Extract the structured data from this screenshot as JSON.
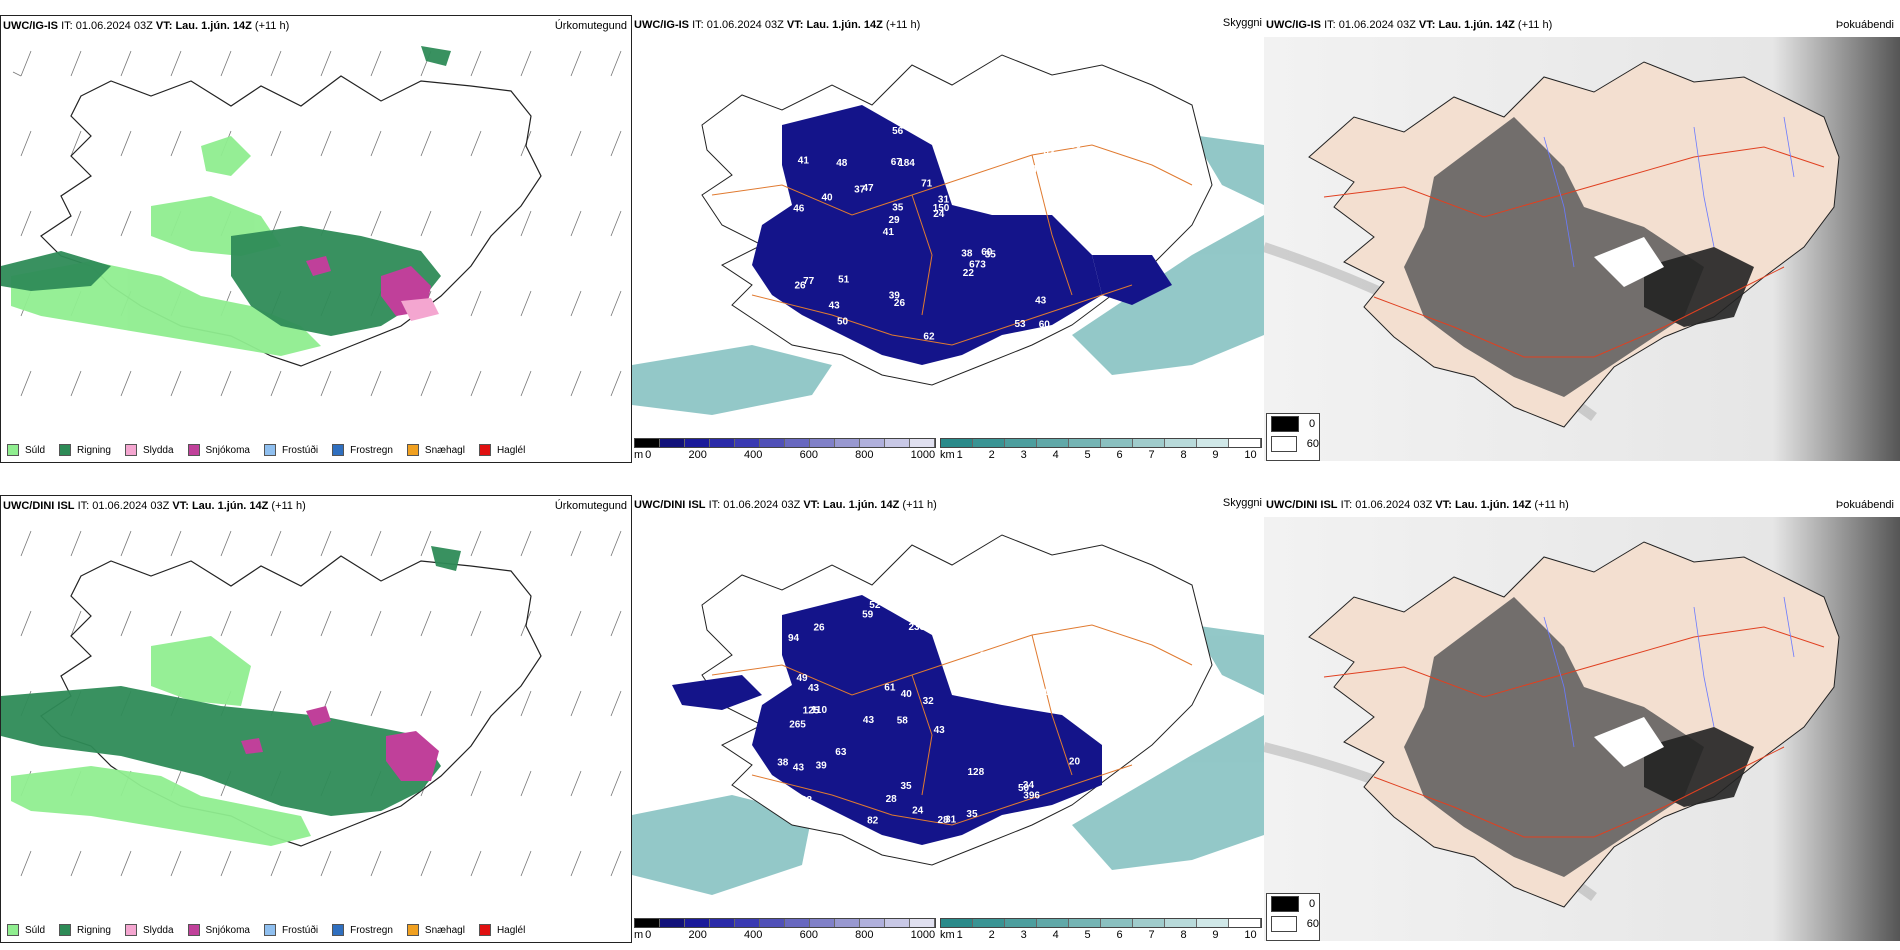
{
  "rows": [
    {
      "model": "UWC/IG-IS",
      "it_label": "IT:",
      "it_value": "01.06.2024 03Z",
      "vt_label": "VT:",
      "vt_value": "Lau. 1.jún. 14Z",
      "lead": "(+11 h)"
    },
    {
      "model": "UWC/DINI ISL",
      "it_label": "IT:",
      "it_value": "01.06.2024 03Z",
      "vt_label": "VT:",
      "vt_value": "Lau. 1.jún. 14Z",
      "lead": "(+11 h)"
    }
  ],
  "panel_titles": {
    "precip_type": "Úrkomutegund",
    "cloud_base": "Skyggni",
    "fog": "Þokuábendi"
  },
  "precip_legend": [
    {
      "label": "Súld",
      "color": "#90ee90"
    },
    {
      "label": "Rigning",
      "color": "#2e8b57"
    },
    {
      "label": "Slydda",
      "color": "#f4a6d0"
    },
    {
      "label": "Snjókoma",
      "color": "#c0409a"
    },
    {
      "label": "Frostúði",
      "color": "#8fbfef"
    },
    {
      "label": "Frostregn",
      "color": "#2f6fbf"
    },
    {
      "label": "Snæhagl",
      "color": "#f0a020"
    },
    {
      "label": "Haglél",
      "color": "#e01010"
    }
  ],
  "cloud_base_bar": {
    "unit": "m",
    "ticks": [
      "0",
      "200",
      "400",
      "600",
      "800",
      "1000"
    ],
    "colors": [
      "#000000",
      "#11117a",
      "#1a1a9a",
      "#2a2aa8",
      "#3a3ab2",
      "#5050b8",
      "#6868c0",
      "#8080c8",
      "#9898d0",
      "#b0b0dc",
      "#c8c8e6",
      "#e0e0f0"
    ]
  },
  "visibility_bar": {
    "unit": "km",
    "ticks": [
      "1",
      "2",
      "3",
      "4",
      "5",
      "6",
      "7",
      "8",
      "9",
      "10"
    ],
    "colors": [
      "#2a8a8a",
      "#3a9494",
      "#4c9e9e",
      "#60a8a8",
      "#74b4b4",
      "#8ac0c0",
      "#a0cccc",
      "#b8dada",
      "#d0e8e8",
      "#ffffff"
    ]
  },
  "fog_scale": [
    {
      "label": "0",
      "color": "#000000"
    },
    {
      "label": "60",
      "color": "#ffffff"
    }
  ],
  "cloud_labels": {
    "row1": [
      "60",
      "46",
      "43",
      "41",
      "49",
      "38",
      "67",
      "71",
      "77",
      "47",
      "45",
      "43",
      "184",
      "31",
      "35",
      "41",
      "56",
      "54",
      "38",
      "96",
      "29",
      "39",
      "35",
      "48",
      "37",
      "51",
      "53",
      "43",
      "60",
      "62",
      "37",
      "40",
      "22",
      "50",
      "28",
      "150",
      "35",
      "26",
      "24",
      "26",
      "24",
      "480",
      "673"
    ],
    "row2": [
      "52",
      "33",
      "39",
      "58",
      "43",
      "110",
      "94",
      "61",
      "265",
      "64",
      "32",
      "47",
      "59",
      "43",
      "28",
      "31",
      "35",
      "38",
      "44",
      "63",
      "43",
      "125",
      "42",
      "101",
      "38",
      "49",
      "40",
      "36",
      "34",
      "43",
      "50",
      "37",
      "39",
      "61",
      "128",
      "20",
      "43",
      "28",
      "33",
      "238",
      "32",
      "82",
      "35",
      "26",
      "24",
      "25",
      "396"
    ]
  }
}
